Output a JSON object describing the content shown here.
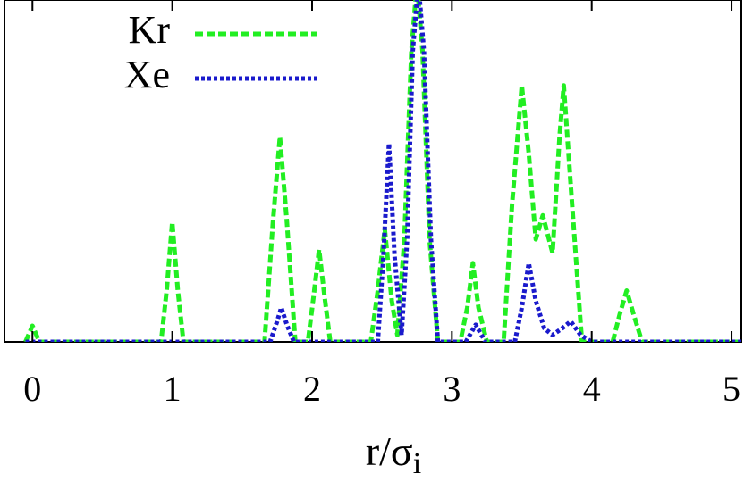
{
  "chart_data": {
    "type": "line",
    "xlabel": {
      "text": "r/σ",
      "subscript": "i"
    },
    "xlim": [
      -0.2,
      5.07
    ],
    "xticks": [
      0,
      1,
      2,
      3,
      4,
      5
    ],
    "ylim": [
      0,
      1
    ],
    "legend": "upper left",
    "series": [
      {
        "name": "Kr",
        "color": "#22ee22",
        "style": "dashed",
        "x": [
          -0.05,
          0,
          0.05,
          0.92,
          0.96,
          1.0,
          1.04,
          1.08,
          1.66,
          1.72,
          1.77,
          1.82,
          1.88,
          1.97,
          2.01,
          2.05,
          2.09,
          2.13,
          2.42,
          2.47,
          2.52,
          2.57,
          2.61,
          2.66,
          2.71,
          2.75,
          2.79,
          2.84,
          2.9,
          3.06,
          3.11,
          3.15,
          3.19,
          3.25,
          3.37,
          3.43,
          3.5,
          3.55,
          3.6,
          3.65,
          3.72,
          3.77,
          3.8,
          3.86,
          3.93,
          4.15,
          4.2,
          4.25,
          4.3,
          4.36,
          5.07
        ],
        "values": [
          0,
          0.047,
          0,
          0,
          0.15,
          0.35,
          0.15,
          0,
          0,
          0.35,
          0.6,
          0.35,
          0,
          0,
          0.13,
          0.27,
          0.13,
          0,
          0,
          0.15,
          0.33,
          0.12,
          0.02,
          0.3,
          0.85,
          1.05,
          0.85,
          0.3,
          0,
          0,
          0.1,
          0.23,
          0.1,
          0,
          0,
          0.4,
          0.75,
          0.55,
          0.3,
          0.37,
          0.26,
          0.6,
          0.75,
          0.4,
          0,
          0,
          0.08,
          0.15,
          0.08,
          0,
          0
        ]
      },
      {
        "name": "Xe",
        "color": "#1a1acc",
        "style": "dotted",
        "x": [
          -0.05,
          1.7,
          1.75,
          1.78,
          1.82,
          1.87,
          2.47,
          2.51,
          2.55,
          2.59,
          2.64,
          2.68,
          2.72,
          2.76,
          2.8,
          2.85,
          2.9,
          3.1,
          3.17,
          3.24,
          3.45,
          3.5,
          3.55,
          3.6,
          3.66,
          3.72,
          3.79,
          3.85,
          3.92,
          4.0,
          5.07
        ],
        "values": [
          0,
          0,
          0.06,
          0.1,
          0.05,
          0,
          0,
          0.25,
          0.58,
          0.25,
          0.02,
          0.3,
          0.85,
          1.05,
          0.85,
          0.3,
          0,
          0,
          0.05,
          0,
          0,
          0.1,
          0.23,
          0.12,
          0.04,
          0.02,
          0.04,
          0.06,
          0.02,
          0,
          0
        ]
      }
    ]
  }
}
